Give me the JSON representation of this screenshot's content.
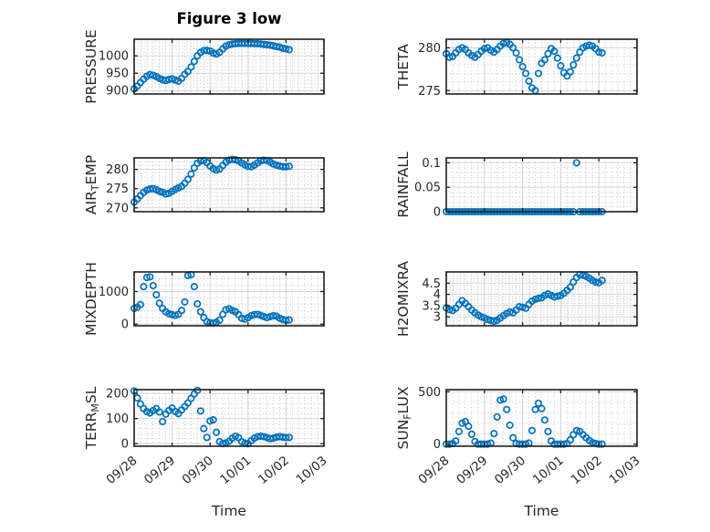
{
  "figure": {
    "title": "Figure 3 low",
    "xlabel": "Time",
    "background_color": "#ffffff"
  },
  "chart_data": {
    "type": "scatter",
    "figure_title": "Figure 3 low",
    "marker": {
      "shape": "open-circle",
      "color": "#0072BD"
    },
    "axis_color": "#1f1f1f",
    "text_color": "#262626",
    "grid": {
      "major_color": "#d4d4d4",
      "minor_color": "#c4c4c4",
      "minor_dotted": true
    },
    "x": {
      "label": "Time",
      "tick_labels": [
        "09/28",
        "09/29",
        "09/30",
        "10/01",
        "10/02",
        "10/03"
      ],
      "lim_hours": [
        0,
        120
      ],
      "major_every_hours": 24,
      "minor_every_hours": 4
    },
    "x_hours": [
      0,
      2,
      4,
      6,
      8,
      10,
      12,
      14,
      16,
      18,
      20,
      22,
      24,
      26,
      28,
      30,
      32,
      34,
      36,
      38,
      40,
      42,
      44,
      46,
      48,
      50,
      52,
      54,
      56,
      58,
      60,
      62,
      64,
      66,
      68,
      70,
      72,
      74,
      76,
      78,
      80,
      82,
      84,
      86,
      88,
      90,
      92,
      94,
      96,
      98
    ],
    "subplots": [
      {
        "name": "PRESSURE",
        "row": 0,
        "col": 0,
        "label_parts": [
          {
            "t": "PRESSURE"
          }
        ],
        "ylim": [
          890,
          1048
        ],
        "yticks": [
          900,
          950,
          1000
        ],
        "ytick_labels": [
          "900",
          "950",
          "1000"
        ],
        "y_minor": 10,
        "values": [
          905,
          913,
          923,
          933,
          941,
          946,
          944,
          940,
          935,
          931,
          929,
          932,
          934,
          930,
          927,
          935,
          947,
          955,
          968,
          984,
          1000,
          1010,
          1015,
          1016,
          1014,
          1008,
          1005,
          1010,
          1020,
          1028,
          1032,
          1034,
          1035,
          1036,
          1036,
          1036,
          1036,
          1036,
          1035,
          1035,
          1034,
          1033,
          1032,
          1031,
          1029,
          1027,
          1025,
          1022,
          1020,
          1018
        ]
      },
      {
        "name": "THETA",
        "row": 0,
        "col": 1,
        "label_parts": [
          {
            "t": "THETA"
          }
        ],
        "ylim": [
          274.6,
          281
        ],
        "yticks": [
          275,
          280
        ],
        "ytick_labels": [
          "275",
          "280"
        ],
        "y_minor": 1,
        "values": [
          279.3,
          278.9,
          279.0,
          279.4,
          279.8,
          280.0,
          279.8,
          279.4,
          279.1,
          278.9,
          279.2,
          279.6,
          279.9,
          280.0,
          279.7,
          279.5,
          279.8,
          280.2,
          280.5,
          280.6,
          280.4,
          280.0,
          279.4,
          278.6,
          277.8,
          277.0,
          276.1,
          275.3,
          275.0,
          277.0,
          278.2,
          278.6,
          279.3,
          279.9,
          279.6,
          278.8,
          277.9,
          277.1,
          276.7,
          277.2,
          278.0,
          278.8,
          279.5,
          280.0,
          280.2,
          280.3,
          280.2,
          279.9,
          279.5,
          279.4
        ]
      },
      {
        "name": "AIR_TEMP",
        "row": 1,
        "col": 0,
        "label_parts": [
          {
            "t": "AIR"
          },
          {
            "t": "T",
            "sub": true
          },
          {
            "t": "EMP"
          }
        ],
        "ylim": [
          269,
          283
        ],
        "yticks": [
          270,
          275,
          280
        ],
        "ytick_labels": [
          "270",
          "275",
          "280"
        ],
        "y_minor": 1,
        "values": [
          271.5,
          272.3,
          273.2,
          274.0,
          274.6,
          274.9,
          275.0,
          274.7,
          274.3,
          274.0,
          273.6,
          273.8,
          274.3,
          274.8,
          275.2,
          275.6,
          276.4,
          277.4,
          278.8,
          280.4,
          281.6,
          282.2,
          282.3,
          281.8,
          280.9,
          280.2,
          279.8,
          280.1,
          281.0,
          281.9,
          282.4,
          282.6,
          282.5,
          282.2,
          281.7,
          281.2,
          280.8,
          280.7,
          281.1,
          281.7,
          282.2,
          282.4,
          282.3,
          281.9,
          281.4,
          281.1,
          280.9,
          280.7,
          280.7,
          280.8
        ]
      },
      {
        "name": "RAINFALL",
        "row": 1,
        "col": 1,
        "label_parts": [
          {
            "t": "RAINFALL"
          }
        ],
        "ylim": [
          0,
          0.11
        ],
        "yticks": [
          0,
          0.05,
          0.1
        ],
        "ytick_labels": [
          "0",
          "0.05",
          "0.1"
        ],
        "y_minor": 0.01,
        "values": [
          0,
          0,
          0,
          0,
          0,
          0,
          0,
          0,
          0,
          0,
          0,
          0,
          0,
          0,
          0,
          0,
          0,
          0,
          0,
          0,
          0,
          0,
          0,
          0,
          0,
          0,
          0,
          0,
          0,
          0,
          0,
          0,
          0,
          0,
          0,
          0,
          0,
          0,
          0,
          0,
          0,
          0.1,
          0,
          0,
          0,
          0,
          0,
          0,
          0,
          0
        ]
      },
      {
        "name": "MIXDEPTH",
        "row": 2,
        "col": 0,
        "label_parts": [
          {
            "t": "MIXDEPTH"
          }
        ],
        "ylim": [
          -50,
          1600
        ],
        "yticks": [
          0,
          1000
        ],
        "ytick_labels": [
          "0",
          "1000"
        ],
        "y_minor": 200,
        "values": [
          480,
          520,
          600,
          1150,
          1430,
          1450,
          1180,
          900,
          640,
          480,
          380,
          320,
          290,
          270,
          300,
          420,
          680,
          1490,
          1520,
          1150,
          620,
          380,
          200,
          80,
          40,
          30,
          60,
          120,
          300,
          440,
          470,
          420,
          380,
          290,
          180,
          150,
          200,
          260,
          290,
          300,
          270,
          230,
          200,
          230,
          260,
          240,
          180,
          140,
          120,
          130
        ]
      },
      {
        "name": "H2OMIXRA",
        "row": 2,
        "col": 1,
        "label_parts": [
          {
            "t": "H2OMIXRA"
          }
        ],
        "ylim": [
          2.6,
          5.0
        ],
        "yticks": [
          3,
          3.5,
          4,
          4.5
        ],
        "ytick_labels": [
          "3",
          "3.5",
          "4",
          "4.5"
        ],
        "y_minor": 0.1,
        "values": [
          3.4,
          3.32,
          3.28,
          3.38,
          3.55,
          3.72,
          3.6,
          3.45,
          3.3,
          3.18,
          3.08,
          3.0,
          2.95,
          2.88,
          2.83,
          2.8,
          2.85,
          2.95,
          3.05,
          3.15,
          3.22,
          3.18,
          3.3,
          3.45,
          3.42,
          3.38,
          3.55,
          3.7,
          3.78,
          3.82,
          3.85,
          3.95,
          4.02,
          3.95,
          3.88,
          3.92,
          3.95,
          4.05,
          4.18,
          4.32,
          4.55,
          4.75,
          4.88,
          4.85,
          4.8,
          4.72,
          4.62,
          4.55,
          4.52,
          4.62
        ]
      },
      {
        "name": "TERR_MSL",
        "row": 3,
        "col": 0,
        "label_parts": [
          {
            "t": "TERR"
          },
          {
            "t": "M",
            "sub": true
          },
          {
            "t": "SL"
          }
        ],
        "ylim": [
          -10,
          215
        ],
        "yticks": [
          0,
          100,
          200
        ],
        "ytick_labels": [
          "0",
          "100",
          "200"
        ],
        "y_minor": 20,
        "values": [
          210,
          182,
          158,
          140,
          128,
          122,
          132,
          140,
          126,
          88,
          118,
          132,
          142,
          128,
          120,
          134,
          148,
          162,
          180,
          198,
          212,
          130,
          60,
          25,
          90,
          95,
          45,
          8,
          0,
          3,
          10,
          22,
          30,
          24,
          8,
          2,
          0,
          12,
          22,
          28,
          30,
          28,
          24,
          20,
          22,
          26,
          28,
          26,
          24,
          25
        ]
      },
      {
        "name": "SUN_FLUX",
        "row": 3,
        "col": 1,
        "label_parts": [
          {
            "t": "SUN"
          },
          {
            "t": "F",
            "sub": true
          },
          {
            "t": "LUX"
          }
        ],
        "ylim": [
          -20,
          520
        ],
        "yticks": [
          0,
          500
        ],
        "ytick_labels": [
          "0",
          "500"
        ],
        "y_minor": 100,
        "values": [
          0,
          0,
          5,
          30,
          120,
          200,
          215,
          170,
          95,
          25,
          0,
          0,
          0,
          0,
          10,
          100,
          260,
          420,
          430,
          330,
          180,
          60,
          5,
          0,
          0,
          0,
          10,
          130,
          330,
          390,
          340,
          230,
          120,
          30,
          0,
          0,
          0,
          0,
          5,
          40,
          90,
          130,
          120,
          90,
          60,
          35,
          15,
          5,
          0,
          0
        ]
      }
    ]
  }
}
